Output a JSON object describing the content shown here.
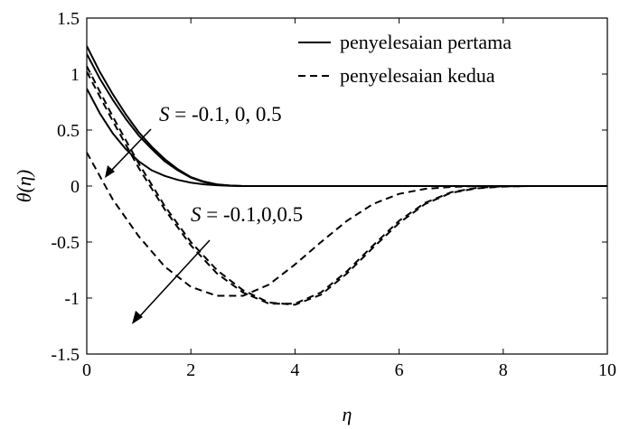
{
  "chart_data": {
    "type": "line",
    "title": "",
    "xlabel": "η",
    "ylabel": "θ(η)",
    "xlim": [
      0,
      10
    ],
    "ylim": [
      -1.5,
      1.5
    ],
    "xticks": [
      0,
      2,
      4,
      6,
      8,
      10
    ],
    "yticks": [
      1.5,
      1,
      0.5,
      0,
      -0.5,
      -1,
      -1.5
    ],
    "xtick_labels": [
      "0",
      "2",
      "4",
      "6",
      "8",
      "10"
    ],
    "ytick_labels": [
      "1.5",
      "1",
      "0.5",
      "0",
      "-0.5",
      "-1",
      "-1.5"
    ],
    "grid": false,
    "legend_position": "top-right",
    "legend": [
      {
        "label": "penyelesaian pertama",
        "style": "solid"
      },
      {
        "label": "penyelesaian kedua",
        "style": "dashed"
      }
    ],
    "annotations": [
      {
        "var": "S",
        "text": " = -0.1, 0, 0.5"
      },
      {
        "var": "S",
        "text": " = -0.1,0,0.5"
      }
    ],
    "series": [
      {
        "style": "solid",
        "x": [
          0,
          0.25,
          0.5,
          0.75,
          1,
          1.25,
          1.5,
          1.75,
          2,
          2.25,
          2.5,
          2.75,
          3,
          3.5,
          4,
          5,
          6,
          7,
          8,
          9,
          10
        ],
        "y": [
          1.25,
          1.02,
          0.82,
          0.64,
          0.48,
          0.35,
          0.24,
          0.15,
          0.08,
          0.04,
          0.015,
          0.005,
          0,
          0,
          0,
          0,
          0,
          0,
          0,
          0,
          0
        ]
      },
      {
        "style": "solid",
        "x": [
          0,
          0.25,
          0.5,
          0.75,
          1,
          1.25,
          1.5,
          1.75,
          2,
          2.25,
          2.5,
          2.75,
          3,
          3.5,
          4,
          5,
          6,
          7,
          8,
          9,
          10
        ],
        "y": [
          1.18,
          0.96,
          0.77,
          0.6,
          0.45,
          0.33,
          0.22,
          0.14,
          0.075,
          0.035,
          0.013,
          0.004,
          0,
          0,
          0,
          0,
          0,
          0,
          0,
          0,
          0
        ]
      },
      {
        "style": "solid",
        "x": [
          0,
          0.25,
          0.5,
          0.75,
          1,
          1.25,
          1.5,
          1.75,
          2,
          2.25,
          2.5,
          2.75,
          3,
          3.5,
          4,
          5,
          6,
          7,
          8,
          9,
          10
        ],
        "y": [
          0.87,
          0.65,
          0.47,
          0.33,
          0.22,
          0.14,
          0.09,
          0.055,
          0.03,
          0.015,
          0.007,
          0.002,
          0,
          0,
          0,
          0,
          0,
          0,
          0,
          0,
          0
        ]
      },
      {
        "style": "dashed",
        "x": [
          0,
          0.5,
          1,
          1.5,
          2,
          2.5,
          3,
          3.5,
          4,
          4.5,
          5,
          5.5,
          6,
          6.5,
          7,
          7.5,
          8,
          8.5,
          9,
          9.5,
          10
        ],
        "y": [
          1.07,
          0.62,
          0.2,
          -0.18,
          -0.5,
          -0.75,
          -0.93,
          -1.04,
          -1.06,
          -0.97,
          -0.78,
          -0.55,
          -0.33,
          -0.16,
          -0.06,
          -0.02,
          -0.005,
          0,
          0,
          0,
          0
        ]
      },
      {
        "style": "dashed",
        "x": [
          0,
          0.5,
          1,
          1.5,
          2,
          2.5,
          3,
          3.5,
          4,
          4.5,
          5,
          5.5,
          6,
          6.5,
          7,
          7.5,
          8,
          8.5,
          9,
          9.5,
          10
        ],
        "y": [
          1.02,
          0.58,
          0.16,
          -0.21,
          -0.53,
          -0.78,
          -0.95,
          -1.05,
          -1.05,
          -0.95,
          -0.76,
          -0.53,
          -0.31,
          -0.15,
          -0.055,
          -0.015,
          -0.003,
          0,
          0,
          0,
          0
        ]
      },
      {
        "style": "dashed",
        "x": [
          0,
          0.5,
          1,
          1.5,
          2,
          2.5,
          3,
          3.5,
          4,
          4.5,
          5,
          5.5,
          6,
          6.5,
          7,
          7.5,
          8,
          8.5,
          9,
          9.5,
          10
        ],
        "y": [
          0.3,
          -0.12,
          -0.45,
          -0.72,
          -0.9,
          -0.98,
          -0.98,
          -0.88,
          -0.7,
          -0.5,
          -0.31,
          -0.16,
          -0.07,
          -0.025,
          -0.008,
          0,
          0,
          0,
          0,
          0,
          0
        ]
      }
    ]
  }
}
